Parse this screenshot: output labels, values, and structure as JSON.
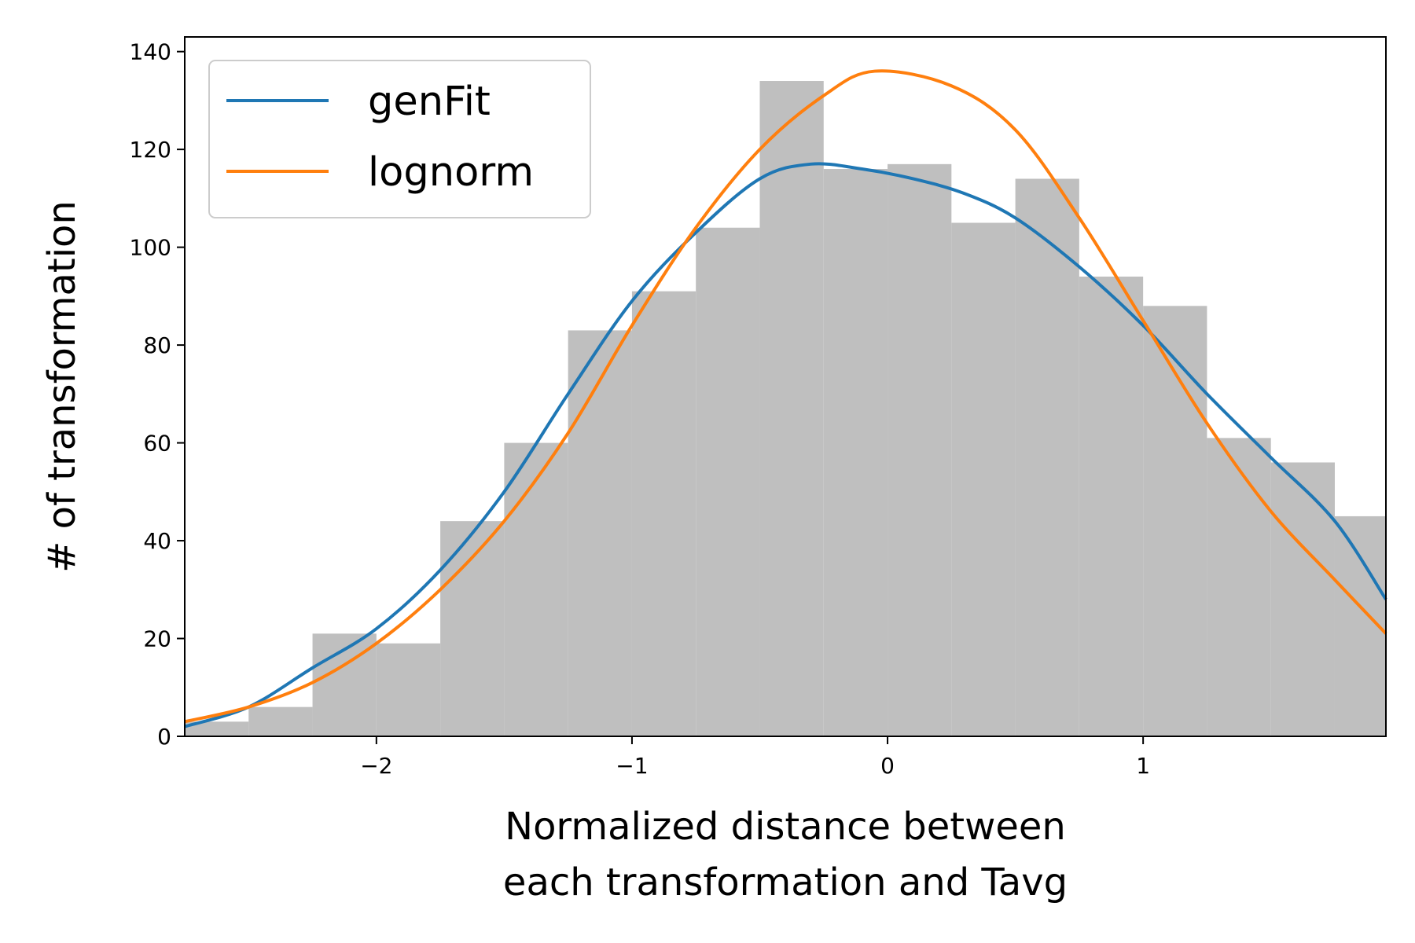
{
  "chart_data": {
    "type": "histogram-with-curves",
    "title": "",
    "xlabel_lines": [
      "Normalized distance between",
      "each transformation and Tavg"
    ],
    "ylabel": "# of transformation",
    "xlim": [
      -2.75,
      1.95
    ],
    "ylim": [
      0,
      143
    ],
    "x_ticks": [
      -2,
      -1,
      0,
      1
    ],
    "x_tick_labels": [
      "−2",
      "−1",
      "0",
      "1"
    ],
    "y_ticks": [
      0,
      20,
      40,
      60,
      80,
      100,
      120,
      140
    ],
    "y_tick_labels": [
      "0",
      "20",
      "40",
      "60",
      "80",
      "100",
      "120",
      "140"
    ],
    "bar_color": "#bfbfbf",
    "histogram": {
      "bin_edges": [
        -2.75,
        -2.5,
        -2.25,
        -2.0,
        -1.75,
        -1.5,
        -1.25,
        -1.0,
        -0.75,
        -0.5,
        -0.25,
        0.0,
        0.25,
        0.5,
        0.75,
        1.0,
        1.25,
        1.5,
        1.75,
        1.95
      ],
      "counts": [
        3,
        6,
        21,
        19,
        44,
        60,
        83,
        91,
        104,
        134,
        116,
        117,
        105,
        114,
        94,
        88,
        61,
        56,
        45
      ]
    },
    "series": [
      {
        "name": "genFit",
        "color": "#1f77b4",
        "x": [
          -2.75,
          -2.5,
          -2.25,
          -2.0,
          -1.75,
          -1.5,
          -1.25,
          -1.0,
          -0.75,
          -0.5,
          -0.3,
          -0.1,
          0.1,
          0.3,
          0.5,
          0.75,
          1.0,
          1.25,
          1.5,
          1.75,
          1.95
        ],
        "y": [
          2,
          6,
          14,
          22,
          34,
          50,
          70,
          89,
          103,
          114,
          117,
          116,
          114,
          111,
          106,
          96,
          84,
          70,
          57,
          44,
          28
        ]
      },
      {
        "name": "lognorm",
        "color": "#ff7f0e",
        "x": [
          -2.75,
          -2.5,
          -2.25,
          -2.0,
          -1.75,
          -1.5,
          -1.25,
          -1.0,
          -0.75,
          -0.5,
          -0.25,
          -0.05,
          0.25,
          0.5,
          0.75,
          1.0,
          1.25,
          1.5,
          1.75,
          1.95
        ],
        "y": [
          3,
          6,
          11,
          19,
          30,
          44,
          62,
          84,
          104,
          120,
          131,
          136,
          133,
          124,
          106,
          85,
          64,
          46,
          32,
          21
        ]
      }
    ],
    "legend": {
      "position": "top-left",
      "frame": true
    }
  }
}
